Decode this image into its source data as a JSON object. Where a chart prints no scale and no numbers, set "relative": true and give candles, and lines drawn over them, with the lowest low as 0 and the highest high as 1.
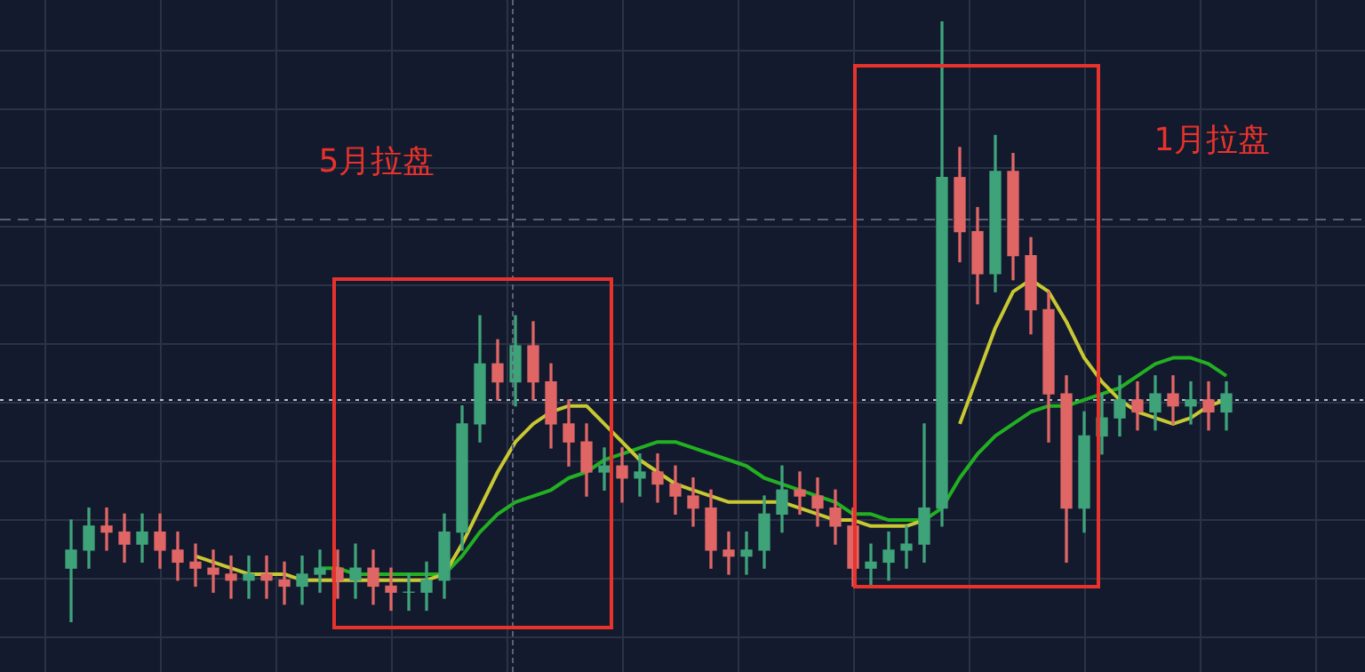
{
  "chart_data": {
    "type": "candlestick",
    "relative": true,
    "grid": true,
    "categories": [
      null,
      null,
      null,
      null,
      null,
      null,
      null,
      null,
      null,
      null,
      null,
      null,
      null,
      null,
      null,
      null,
      null,
      null,
      null,
      null,
      null,
      null,
      null,
      null,
      null,
      null,
      null,
      null,
      null,
      null,
      null,
      null,
      null,
      null,
      null,
      null,
      null,
      null,
      null,
      null,
      null,
      null,
      null,
      null,
      null,
      null,
      null,
      null,
      null,
      null,
      null,
      null,
      null,
      null,
      null,
      null,
      null,
      null,
      null,
      null,
      null,
      null,
      null,
      null,
      null,
      null
    ],
    "colors": [
      "#3fa37a",
      "#3fa37a",
      "#e06666",
      "#e06666",
      "#3fa37a",
      "#e06666",
      "#e06666",
      "#e06666",
      "#e06666",
      "#e06666",
      "#3fa37a",
      "#e06666",
      "#e06666",
      "#3fa37a",
      "#3fa37a",
      "#e06666",
      "#3fa37a",
      "#e06666",
      "#e06666",
      "#3fa37a",
      "#3fa37a",
      "#3fa37a",
      "#3fa37a",
      "#3fa37a",
      "#e06666",
      "#3fa37a",
      "#e06666",
      "#e06666",
      "#e06666",
      "#e06666",
      "#3fa37a",
      "#e06666",
      "#3fa37a",
      "#e06666",
      "#e06666",
      "#e06666",
      "#e06666",
      "#e06666",
      "#3fa37a",
      "#3fa37a",
      "#3fa37a",
      "#e06666",
      "#e06666",
      "#e06666",
      "#e06666",
      "#3fa37a",
      "#3fa37a",
      "#3fa37a",
      "#3fa37a",
      "#3fa37a",
      "#e06666",
      "#e06666",
      "#3fa37a",
      "#e06666",
      "#e06666",
      "#e06666",
      "#e06666",
      "#3fa37a",
      "#3fa37a",
      "#3fa37a",
      "#e06666",
      "#3fa37a",
      "#e06666",
      "#3fa37a",
      "#e06666",
      "#3fa37a"
    ],
    "ohlc": [
      [
        0.09,
        0.17,
        0,
        0.12
      ],
      [
        0.12,
        0.19,
        0.09,
        0.16
      ],
      [
        0.16,
        0.19,
        0.12,
        0.15
      ],
      [
        0.15,
        0.18,
        0.1,
        0.13
      ],
      [
        0.13,
        0.18,
        0.1,
        0.15
      ],
      [
        0.15,
        0.18,
        0.09,
        0.12
      ],
      [
        0.12,
        0.15,
        0.07,
        0.1
      ],
      [
        0.1,
        0.13,
        0.06,
        0.09
      ],
      [
        0.09,
        0.12,
        0.05,
        0.08
      ],
      [
        0.08,
        0.11,
        0.04,
        0.07
      ],
      [
        0.07,
        0.11,
        0.04,
        0.08
      ],
      [
        0.08,
        0.11,
        0.04,
        0.07
      ],
      [
        0.07,
        0.1,
        0.03,
        0.06
      ],
      [
        0.06,
        0.11,
        0.03,
        0.08
      ],
      [
        0.08,
        0.12,
        0.05,
        0.09
      ],
      [
        0.09,
        0.12,
        0.04,
        0.07
      ],
      [
        0.07,
        0.13,
        0.04,
        0.09
      ],
      [
        0.09,
        0.12,
        0.03,
        0.06
      ],
      [
        0.06,
        0.09,
        0.02,
        0.05
      ],
      [
        0.05,
        0.08,
        0.02,
        0.05
      ],
      [
        0.05,
        0.1,
        0.02,
        0.07
      ],
      [
        0.07,
        0.18,
        0.04,
        0.15
      ],
      [
        0.15,
        0.36,
        0.12,
        0.33
      ],
      [
        0.33,
        0.51,
        0.3,
        0.43
      ],
      [
        0.43,
        0.47,
        0.37,
        0.4
      ],
      [
        0.4,
        0.51,
        0.36,
        0.46
      ],
      [
        0.46,
        0.5,
        0.37,
        0.4
      ],
      [
        0.4,
        0.43,
        0.29,
        0.33
      ],
      [
        0.33,
        0.37,
        0.26,
        0.3
      ],
      [
        0.3,
        0.33,
        0.21,
        0.25
      ],
      [
        0.25,
        0.29,
        0.22,
        0.26
      ],
      [
        0.26,
        0.29,
        0.2,
        0.24
      ],
      [
        0.24,
        0.28,
        0.21,
        0.25
      ],
      [
        0.25,
        0.28,
        0.2,
        0.23
      ],
      [
        0.23,
        0.26,
        0.18,
        0.21
      ],
      [
        0.21,
        0.24,
        0.16,
        0.19
      ],
      [
        0.19,
        0.22,
        0.09,
        0.12
      ],
      [
        0.12,
        0.15,
        0.08,
        0.11
      ],
      [
        0.11,
        0.15,
        0.08,
        0.12
      ],
      [
        0.12,
        0.21,
        0.09,
        0.18
      ],
      [
        0.18,
        0.26,
        0.15,
        0.22
      ],
      [
        0.22,
        0.25,
        0.18,
        0.21
      ],
      [
        0.21,
        0.24,
        0.16,
        0.19
      ],
      [
        0.19,
        0.22,
        0.13,
        0.16
      ],
      [
        0.16,
        0.19,
        0.06,
        0.09
      ],
      [
        0.09,
        0.13,
        0.06,
        0.1
      ],
      [
        0.1,
        0.15,
        0.07,
        0.12
      ],
      [
        0.12,
        0.16,
        0.09,
        0.13
      ],
      [
        0.13,
        0.33,
        0.1,
        0.19
      ],
      [
        0.19,
        1,
        0.16,
        0.74
      ],
      [
        0.74,
        0.79,
        0.6,
        0.65
      ],
      [
        0.65,
        0.69,
        0.53,
        0.58
      ],
      [
        0.58,
        0.81,
        0.55,
        0.75
      ],
      [
        0.75,
        0.78,
        0.57,
        0.61
      ],
      [
        0.61,
        0.64,
        0.48,
        0.52
      ],
      [
        0.52,
        0.55,
        0.3,
        0.38
      ],
      [
        0.38,
        0.41,
        0.1,
        0.19
      ],
      [
        0.19,
        0.35,
        0.15,
        0.31
      ],
      [
        0.31,
        0.38,
        0.28,
        0.34
      ],
      [
        0.34,
        0.41,
        0.31,
        0.37
      ],
      [
        0.37,
        0.4,
        0.32,
        0.35
      ],
      [
        0.35,
        0.41,
        0.32,
        0.38
      ],
      [
        0.38,
        0.41,
        0.33,
        0.36
      ],
      [
        0.36,
        0.4,
        0.33,
        0.37
      ],
      [
        0.37,
        0.4,
        0.32,
        0.35
      ],
      [
        0.35,
        0.4,
        0.32,
        0.38
      ]
    ],
    "series": [
      {
        "type": "line",
        "color": "#c8c832",
        "values": [
          null,
          null,
          null,
          null,
          null,
          null,
          null,
          0.11,
          0.1,
          0.09,
          0.08,
          0.08,
          0.08,
          0.07,
          0.07,
          0.07,
          0.07,
          0.07,
          0.07,
          0.07,
          0.07,
          0.08,
          0.13,
          0.19,
          0.25,
          0.3,
          0.33,
          0.35,
          0.36,
          0.36,
          0.33,
          0.3,
          0.27,
          0.25,
          0.23,
          0.22,
          0.21,
          0.2,
          0.2,
          0.2,
          0.2,
          0.19,
          0.18,
          0.17,
          0.17,
          0.16,
          0.16,
          0.16,
          0.17,
          null,
          0.33,
          0.41,
          0.49,
          0.55,
          0.57,
          0.55,
          0.5,
          0.44,
          0.4,
          0.37,
          0.35,
          0.34,
          0.33,
          0.34,
          0.36,
          0.37
        ]
      },
      {
        "type": "line",
        "color": "#22b022",
        "values": [
          null,
          null,
          null,
          null,
          null,
          null,
          null,
          null,
          null,
          null,
          null,
          null,
          null,
          null,
          0.09,
          0.09,
          0.08,
          0.08,
          0.08,
          0.08,
          0.08,
          0.08,
          0.11,
          0.15,
          0.18,
          0.2,
          0.21,
          0.22,
          0.24,
          0.25,
          0.27,
          0.28,
          0.29,
          0.3,
          0.3,
          0.29,
          0.28,
          0.27,
          0.26,
          0.24,
          0.23,
          0.22,
          0.21,
          0.2,
          0.18,
          0.18,
          0.17,
          0.17,
          0.17,
          0.19,
          0.24,
          0.28,
          0.31,
          0.33,
          0.35,
          0.36,
          0.36,
          0.37,
          0.38,
          0.39,
          0.41,
          0.43,
          0.44,
          0.44,
          0.43,
          0.41
        ]
      }
    ],
    "ref_lines": [
      {
        "axis": "y",
        "value": 0.67,
        "color": "#5a6275",
        "line_style": "dashed"
      },
      {
        "axis": "y",
        "value": 0.37,
        "color": "#b8bcc8",
        "line_style": "dotted"
      }
    ],
    "annotations": [
      "5月拉盘",
      "1月拉盘"
    ]
  }
}
